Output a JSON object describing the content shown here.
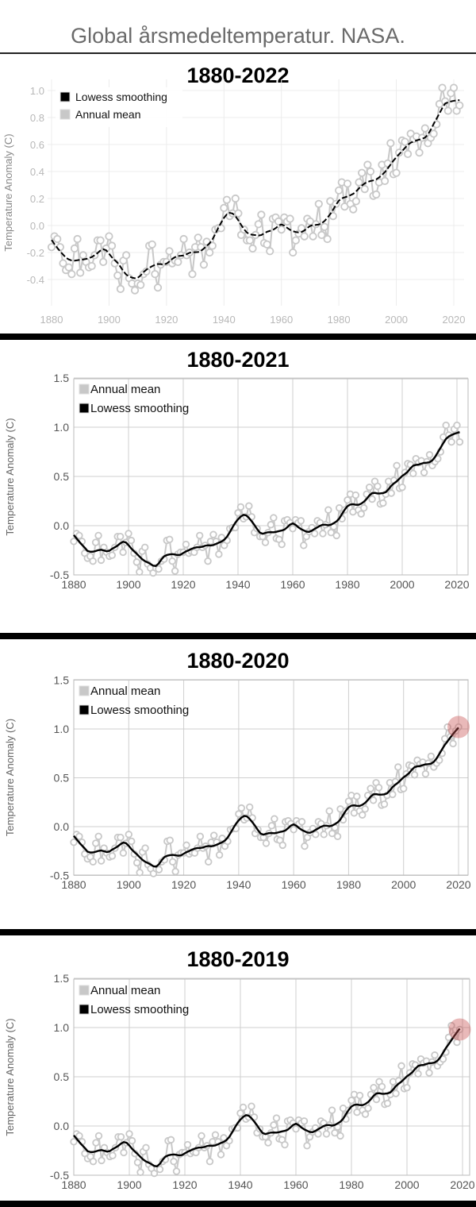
{
  "page_title": "Global årsmedeltemperatur. NASA.",
  "annual_mean": {
    "start_year": 1880,
    "values": [
      -0.16,
      -0.08,
      -0.1,
      -0.16,
      -0.28,
      -0.33,
      -0.31,
      -0.36,
      -0.17,
      -0.1,
      -0.35,
      -0.22,
      -0.27,
      -0.31,
      -0.3,
      -0.22,
      -0.11,
      -0.11,
      -0.27,
      -0.17,
      -0.08,
      -0.15,
      -0.28,
      -0.37,
      -0.47,
      -0.26,
      -0.22,
      -0.39,
      -0.43,
      -0.48,
      -0.43,
      -0.44,
      -0.36,
      -0.34,
      -0.15,
      -0.14,
      -0.36,
      -0.46,
      -0.29,
      -0.27,
      -0.27,
      -0.19,
      -0.28,
      -0.26,
      -0.27,
      -0.22,
      -0.1,
      -0.22,
      -0.2,
      -0.36,
      -0.16,
      -0.09,
      -0.16,
      -0.29,
      -0.12,
      -0.2,
      -0.15,
      -0.03,
      -0.02,
      -0.02,
      0.13,
      0.19,
      0.07,
      0.09,
      0.2,
      0.09,
      -0.07,
      -0.03,
      -0.11,
      -0.11,
      -0.17,
      -0.07,
      0.01,
      0.08,
      -0.13,
      -0.14,
      -0.19,
      0.05,
      0.06,
      0.03,
      -0.03,
      0.06,
      0.03,
      0.05,
      -0.2,
      -0.11,
      -0.06,
      -0.02,
      -0.08,
      0.05,
      0.03,
      -0.08,
      0.01,
      0.16,
      -0.07,
      -0.01,
      -0.1,
      0.18,
      0.07,
      0.16,
      0.26,
      0.32,
      0.14,
      0.31,
      0.16,
      0.12,
      0.18,
      0.32,
      0.39,
      0.27,
      0.45,
      0.4,
      0.22,
      0.23,
      0.32,
      0.45,
      0.33,
      0.46,
      0.61,
      0.38,
      0.39,
      0.54,
      0.63,
      0.62,
      0.53,
      0.68,
      0.64,
      0.66,
      0.54,
      0.65,
      0.72,
      0.61,
      0.65,
      0.68,
      0.75,
      0.9,
      1.02,
      0.92,
      0.85,
      0.98,
      1.02,
      0.85,
      0.89
    ]
  },
  "chart_data": [
    {
      "type": "line",
      "title": "1880-2022",
      "x_range": [
        1880,
        2022
      ],
      "ylabel": "Temperature Anomaly (C)",
      "xlabel": "",
      "ylim": [
        -0.6,
        1.05
      ],
      "yticks": [
        "1.0",
        "0.8",
        "0.6",
        "0.4",
        "0.2",
        "0.0",
        "-0.2",
        "-0.4"
      ],
      "ytick_values": [
        1.0,
        0.8,
        0.6,
        0.4,
        0.2,
        0.0,
        -0.2,
        -0.4
      ],
      "xticks": [
        "1880",
        "1900",
        "1920",
        "1940",
        "1960",
        "1980",
        "2000",
        "2020"
      ],
      "xtick_values": [
        1880,
        1900,
        1920,
        1940,
        1960,
        1980,
        2000,
        2020
      ],
      "legend": [
        "Lowess smoothing",
        "Annual mean"
      ],
      "legend_position": "top-left",
      "highlight_last": false,
      "grid": true
    },
    {
      "type": "line",
      "title": "1880-2021",
      "x_range": [
        1880,
        2021
      ],
      "ylabel": "Temperature Anomaly (C)",
      "xlabel": "",
      "ylim": [
        -0.5,
        1.5
      ],
      "yticks": [
        "1.5",
        "1.0",
        "0.5",
        "0.0",
        "-0.5"
      ],
      "ytick_values": [
        1.5,
        1.0,
        0.5,
        0.0,
        -0.5
      ],
      "xticks": [
        "1880",
        "1900",
        "1920",
        "1940",
        "1960",
        "1980",
        "2000",
        "2020"
      ],
      "xtick_values": [
        1880,
        1900,
        1920,
        1940,
        1960,
        1980,
        2000,
        2020
      ],
      "legend": [
        "Annual mean",
        "Lowess smoothing"
      ],
      "legend_position": "top-left",
      "highlight_last": false,
      "grid": true
    },
    {
      "type": "line",
      "title": "1880-2020",
      "x_range": [
        1880,
        2020
      ],
      "ylabel": "Temperature Anomaly (C)",
      "xlabel": "",
      "ylim": [
        -0.5,
        1.5
      ],
      "yticks": [
        "1.5",
        "1.0",
        "0.5",
        "0.0",
        "-0.5"
      ],
      "ytick_values": [
        1.5,
        1.0,
        0.5,
        0.0,
        -0.5
      ],
      "xticks": [
        "1880",
        "1900",
        "1920",
        "1940",
        "1960",
        "1980",
        "2000",
        "2020"
      ],
      "xtick_values": [
        1880,
        1900,
        1920,
        1940,
        1960,
        1980,
        2000,
        2020
      ],
      "legend": [
        "Annual mean",
        "Lowess smoothing"
      ],
      "legend_position": "top-left",
      "highlight_last": true,
      "grid": true
    },
    {
      "type": "line",
      "title": "1880-2019",
      "x_range": [
        1880,
        2019
      ],
      "ylabel": "Temperature Anomaly (C)",
      "xlabel": "",
      "ylim": [
        -0.5,
        1.5
      ],
      "yticks": [
        "1.5",
        "1.0",
        "0.5",
        "0.0",
        "-0.5"
      ],
      "ytick_values": [
        1.5,
        1.0,
        0.5,
        0.0,
        -0.5
      ],
      "xticks": [
        "1880",
        "1900",
        "1920",
        "1940",
        "1960",
        "1980",
        "2000",
        "2020"
      ],
      "xtick_values": [
        1880,
        1900,
        1920,
        1940,
        1960,
        1980,
        2000,
        2020
      ],
      "legend": [
        "Annual mean",
        "Lowess smoothing"
      ],
      "legend_position": "top-left",
      "highlight_last": true,
      "grid": true
    }
  ],
  "colors": {
    "annual": "#c8c8c8",
    "lowess": "#000000",
    "highlight": "#c85050"
  }
}
